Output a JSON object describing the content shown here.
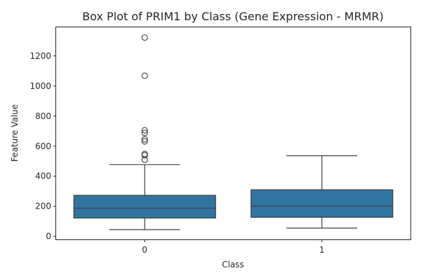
{
  "chart_data": {
    "type": "box",
    "title": "Box Plot of PRIM1 by Class (Gene Expression - MRMR)",
    "xlabel": "Class",
    "ylabel": "Feature Value",
    "categories": [
      "0",
      "1"
    ],
    "ylim": [
      -20,
      1390
    ],
    "yticks": [
      0,
      200,
      400,
      600,
      800,
      1000,
      1200
    ],
    "grid": false,
    "legend": "none",
    "box_color": "#3274a1",
    "edge_color": "#3d3d3d",
    "boxes": [
      {
        "category": "0",
        "whisker_low": 45,
        "q1": 122,
        "median": 188,
        "q3": 273,
        "whisker_high": 477,
        "outliers": [
          510,
          540,
          548,
          632,
          645,
          688,
          705,
          1068,
          1322
        ]
      },
      {
        "category": "1",
        "whisker_low": 55,
        "q1": 127,
        "median": 202,
        "q3": 310,
        "whisker_high": 536,
        "outliers": []
      }
    ]
  }
}
